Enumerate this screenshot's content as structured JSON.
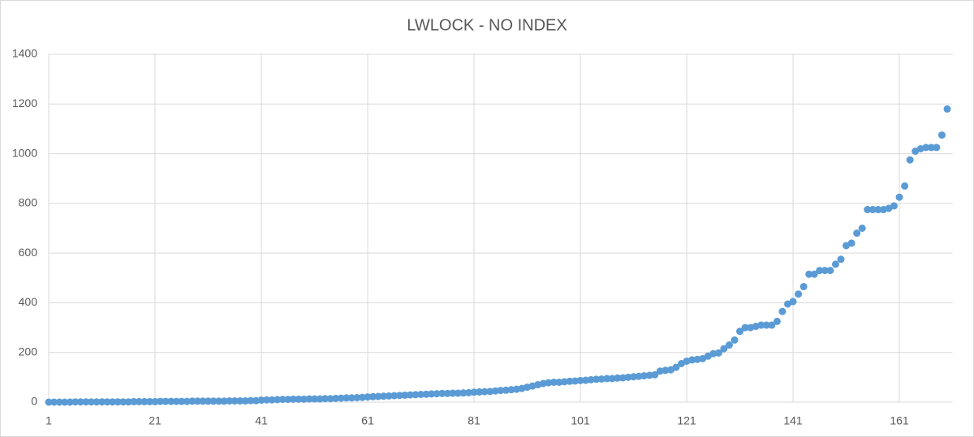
{
  "chart_data": {
    "type": "scatter",
    "title": "LWLOCK  - NO INDEX",
    "x": [
      1,
      2,
      3,
      4,
      5,
      6,
      7,
      8,
      9,
      10,
      11,
      12,
      13,
      14,
      15,
      16,
      17,
      18,
      19,
      20,
      21,
      22,
      23,
      24,
      25,
      26,
      27,
      28,
      29,
      30,
      31,
      32,
      33,
      34,
      35,
      36,
      37,
      38,
      39,
      40,
      41,
      42,
      43,
      44,
      45,
      46,
      47,
      48,
      49,
      50,
      51,
      52,
      53,
      54,
      55,
      56,
      57,
      58,
      59,
      60,
      61,
      62,
      63,
      64,
      65,
      66,
      67,
      68,
      69,
      70,
      71,
      72,
      73,
      74,
      75,
      76,
      77,
      78,
      79,
      80,
      81,
      82,
      83,
      84,
      85,
      86,
      87,
      88,
      89,
      90,
      91,
      92,
      93,
      94,
      95,
      96,
      97,
      98,
      99,
      100,
      101,
      102,
      103,
      104,
      105,
      106,
      107,
      108,
      109,
      110,
      111,
      112,
      113,
      114,
      115,
      116,
      117,
      118,
      119,
      120,
      121,
      122,
      123,
      124,
      125,
      126,
      127,
      128,
      129,
      130,
      131,
      132,
      133,
      134,
      135,
      136,
      137,
      138,
      139,
      140,
      141,
      142,
      143,
      144,
      145,
      146,
      147,
      148,
      149,
      150,
      151,
      152,
      153,
      154,
      155,
      156,
      157,
      158,
      159,
      160,
      161,
      162,
      163,
      164,
      165,
      166,
      167,
      168,
      169,
      170
    ],
    "values": [
      0,
      0,
      0,
      0,
      0,
      1,
      1,
      1,
      1,
      1,
      1,
      1,
      1,
      1,
      1,
      1,
      2,
      2,
      2,
      2,
      2,
      3,
      3,
      3,
      3,
      3,
      3,
      4,
      4,
      4,
      4,
      4,
      4,
      4,
      5,
      5,
      5,
      5,
      6,
      6,
      8,
      9,
      9,
      10,
      11,
      11,
      12,
      12,
      12,
      13,
      13,
      13,
      14,
      14,
      15,
      16,
      17,
      17,
      18,
      19,
      21,
      22,
      23,
      24,
      25,
      26,
      27,
      28,
      29,
      30,
      31,
      32,
      33,
      34,
      35,
      35,
      36,
      36,
      37,
      38,
      40,
      41,
      42,
      43,
      45,
      47,
      48,
      50,
      52,
      55,
      60,
      65,
      70,
      75,
      78,
      80,
      80,
      82,
      84,
      85,
      87,
      88,
      90,
      92,
      93,
      95,
      95,
      97,
      98,
      100,
      102,
      104,
      106,
      108,
      110,
      125,
      128,
      130,
      140,
      155,
      165,
      170,
      172,
      175,
      185,
      195,
      198,
      215,
      230,
      250,
      285,
      300,
      300,
      305,
      310,
      310,
      310,
      325,
      365,
      395,
      405,
      435,
      465,
      515,
      515,
      530,
      530,
      530,
      555,
      575,
      630,
      640,
      680,
      700,
      775,
      775,
      775,
      775,
      780,
      790,
      825,
      870,
      975,
      1010,
      1020,
      1025,
      1025,
      1025,
      1075,
      1180
    ],
    "color": "#5b9bd5",
    "xlim": [
      1,
      171
    ],
    "xticks": [
      1,
      21,
      41,
      61,
      81,
      101,
      121,
      141,
      161
    ],
    "ylim": [
      0,
      1400
    ],
    "yticks": [
      0,
      200,
      400,
      600,
      800,
      1000,
      1200,
      1400
    ],
    "grid": true
  }
}
